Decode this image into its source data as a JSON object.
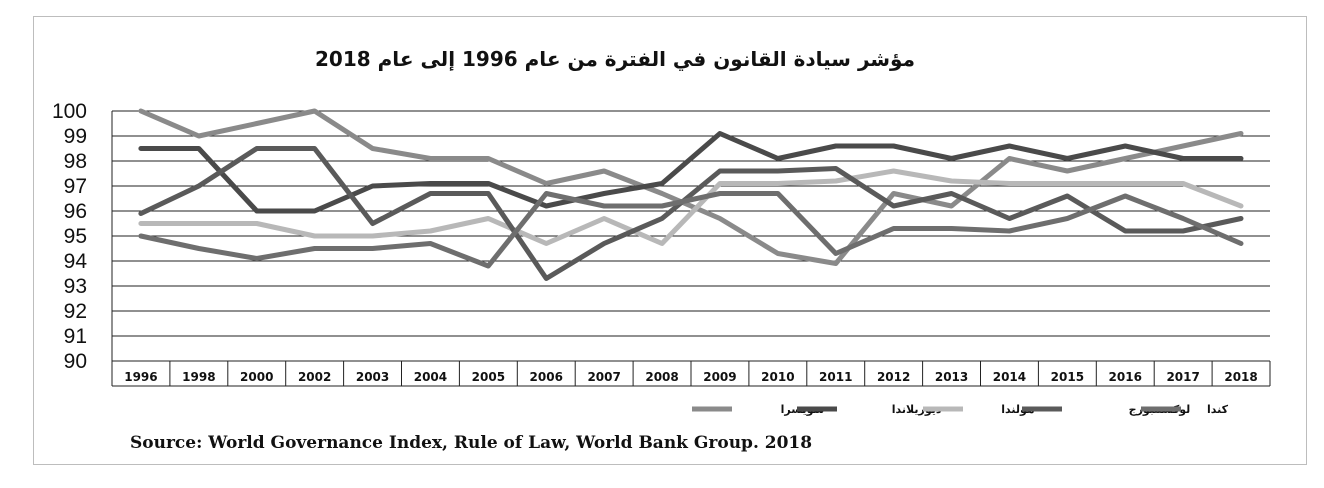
{
  "chart_data": {
    "type": "line",
    "title": "مؤشر سيادة القانون في الفترة من عام 1996 إلى عام  2018",
    "categories": [
      "1996",
      "1998",
      "2000",
      "2002",
      "2003",
      "2004",
      "2005",
      "2006",
      "2007",
      "2008",
      "2009",
      "2010",
      "2011",
      "2012",
      "2013",
      "2014",
      "2015",
      "2016",
      "2017",
      "2018"
    ],
    "ylim": [
      90,
      100
    ],
    "yticks": [
      "90",
      "91",
      "92",
      "93",
      "94",
      "95",
      "96",
      "97",
      "98",
      "99",
      "100"
    ],
    "grid": true,
    "legend_position": "bottom-right",
    "source": "Source: World Governance Index, Rule of Law, World Bank Group. 2018",
    "series": [
      {
        "name": "سويسرا",
        "color": "#8a8a8a",
        "width": 5,
        "values": [
          100,
          99.0,
          99.5,
          100,
          98.5,
          98.1,
          98.1,
          97.1,
          97.6,
          96.7,
          95.7,
          94.3,
          93.9,
          96.7,
          96.2,
          98.1,
          97.6,
          98.1,
          98.6,
          99.1
        ]
      },
      {
        "name": "ديوريلاندا",
        "color": "#4a4a4a",
        "width": 5,
        "values": [
          98.5,
          98.5,
          96.0,
          96.0,
          97.0,
          97.1,
          97.1,
          96.2,
          96.7,
          97.1,
          99.1,
          98.1,
          98.6,
          98.6,
          98.1,
          98.6,
          98.1,
          98.6,
          98.1,
          98.1
        ]
      },
      {
        "name": "هولندا",
        "color": "#b8b8b8",
        "width": 5,
        "values": [
          95.5,
          95.5,
          95.5,
          95.0,
          95.0,
          95.2,
          95.7,
          94.7,
          95.7,
          94.7,
          97.1,
          97.1,
          97.2,
          97.6,
          97.2,
          97.1,
          97.1,
          97.1,
          97.1,
          96.2
        ]
      },
      {
        "name": "لوكسمبورج",
        "color": "#5a5a5a",
        "width": 5,
        "values": [
          95.9,
          97.0,
          98.5,
          98.5,
          95.5,
          96.7,
          96.7,
          93.3,
          94.7,
          95.7,
          97.6,
          97.6,
          97.7,
          96.2,
          96.7,
          95.7,
          96.6,
          95.2,
          95.2,
          95.7
        ]
      },
      {
        "name": "كندا",
        "color": "#6e6e6e",
        "width": 5,
        "values": [
          95.0,
          94.5,
          94.1,
          94.5,
          94.5,
          94.7,
          93.8,
          96.7,
          96.2,
          96.2,
          96.7,
          96.7,
          94.3,
          95.3,
          95.3,
          95.2,
          95.7,
          96.6,
          95.7,
          94.7
        ]
      }
    ]
  }
}
